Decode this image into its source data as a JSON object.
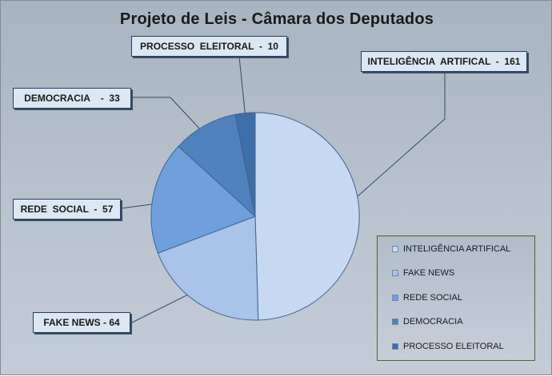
{
  "chart_data": {
    "type": "pie",
    "title": "Projeto de Leis - Câmara  dos Deputados",
    "slices": [
      {
        "label": "INTELIGÊNCIA ARTIFICAL",
        "value": 161,
        "callout": "INTELIGÊNCIA  ARTIFICAL  -  161",
        "color": "#c6d9f1"
      },
      {
        "label": "FAKE NEWS",
        "value": 64,
        "callout": "FAKE NEWS - 64",
        "color": "#a9c4e8"
      },
      {
        "label": "REDE SOCIAL",
        "value": 57,
        "callout": "REDE  SOCIAL  -  57",
        "color": "#6fa0dc"
      },
      {
        "label": "DEMOCRACIA",
        "value": 33,
        "callout": "DEMOCRACIA    -  33",
        "color": "#4f81bd"
      },
      {
        "label": "PROCESSO ELEITORAL",
        "value": 10,
        "callout": "PROCESSO  ELEITORAL  -  10",
        "color": "#3d6fa8"
      }
    ],
    "legend_position": "bottom-right"
  }
}
